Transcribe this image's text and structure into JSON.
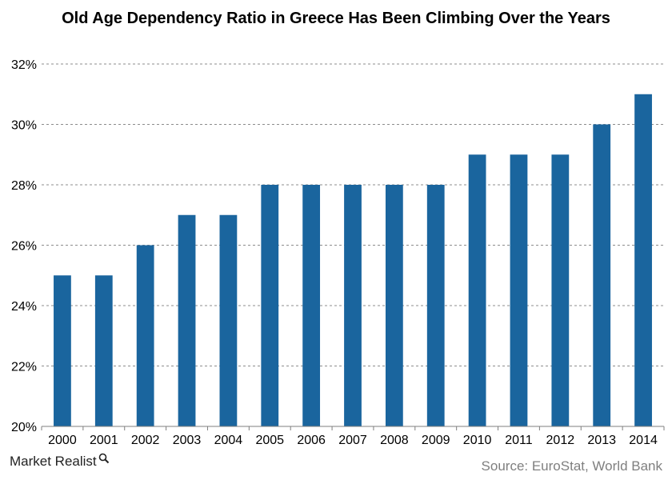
{
  "title": "Old Age Dependency  Ratio in Greece Has Been Climbing  Over the Years",
  "brand": "Market Realist",
  "source": "Source: EuroStat, World Bank",
  "colors": {
    "bar": "#1a659e",
    "grid": "#8c8c8c",
    "axis": "#7f7f7f"
  },
  "chart_data": {
    "type": "bar",
    "title": "Old Age Dependency  Ratio in Greece Has Been Climbing  Over the Years",
    "categories": [
      "2000",
      "2001",
      "2002",
      "2003",
      "2004",
      "2005",
      "2006",
      "2007",
      "2008",
      "2009",
      "2010",
      "2011",
      "2012",
      "2013",
      "2014"
    ],
    "values": [
      25,
      25,
      26,
      27,
      27,
      28,
      28,
      28,
      28,
      28,
      29,
      29,
      29,
      30,
      31
    ],
    "ylim": [
      20,
      32
    ],
    "yticks": [
      20,
      22,
      24,
      26,
      28,
      30,
      32
    ],
    "ytick_labels": [
      "20%",
      "22%",
      "24%",
      "26%",
      "28%",
      "30%",
      "32%"
    ],
    "grid": true,
    "legend": "none",
    "xlabel": "",
    "ylabel": ""
  }
}
